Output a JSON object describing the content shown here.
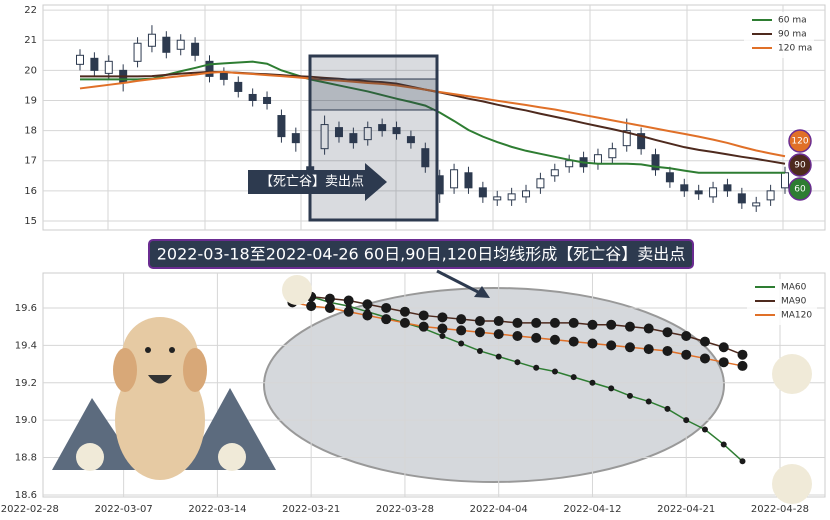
{
  "chart_data": [
    {
      "type": "candlestick",
      "open": [
        20.2,
        20.4,
        19.9,
        20.0,
        20.3,
        20.8,
        21.1,
        20.7,
        20.9,
        20.3,
        19.9,
        19.6,
        19.2,
        19.1,
        18.5,
        17.9,
        16.8,
        17.4,
        18.1,
        17.9,
        17.7,
        18.2,
        18.1,
        17.8,
        17.4,
        16.5,
        16.1,
        16.6,
        16.1,
        15.7,
        15.7,
        15.8,
        16.1,
        16.5,
        16.8,
        17.1,
        16.9,
        17.1,
        17.5,
        17.9,
        17.2,
        16.6,
        16.2,
        16.0,
        15.8,
        16.2,
        15.9,
        15.5,
        15.7,
        16.1
      ],
      "high": [
        20.7,
        20.6,
        20.5,
        20.2,
        21.1,
        21.5,
        21.3,
        21.2,
        21.1,
        20.5,
        20.1,
        19.8,
        19.4,
        19.3,
        18.7,
        18.1,
        17.0,
        18.5,
        18.3,
        18.1,
        18.3,
        18.4,
        18.3,
        18.0,
        17.6,
        16.7,
        16.9,
        16.8,
        16.3,
        16.0,
        16.1,
        16.2,
        16.6,
        16.9,
        17.2,
        17.3,
        17.4,
        17.6,
        18.4,
        18.1,
        17.4,
        16.8,
        16.4,
        16.2,
        16.3,
        16.4,
        16.1,
        15.8,
        16.2,
        16.8
      ],
      "low": [
        20.0,
        19.8,
        19.7,
        19.3,
        20.1,
        20.6,
        20.4,
        20.5,
        20.3,
        19.6,
        19.5,
        19.1,
        18.8,
        18.7,
        17.6,
        17.3,
        15.9,
        17.2,
        17.6,
        17.4,
        17.5,
        17.8,
        17.7,
        17.4,
        16.6,
        15.6,
        15.9,
        15.9,
        15.6,
        15.5,
        15.5,
        15.6,
        15.9,
        16.3,
        16.6,
        16.6,
        16.7,
        16.9,
        17.3,
        17.2,
        16.5,
        16.1,
        15.8,
        15.7,
        15.6,
        15.8,
        15.4,
        15.3,
        15.5,
        15.9
      ],
      "close": [
        20.5,
        20.0,
        20.3,
        19.6,
        20.9,
        21.2,
        20.6,
        21.0,
        20.5,
        19.8,
        19.7,
        19.3,
        19.0,
        18.9,
        17.8,
        17.6,
        16.2,
        18.2,
        17.8,
        17.6,
        18.1,
        18.0,
        17.9,
        17.6,
        16.8,
        15.9,
        16.7,
        16.1,
        15.8,
        15.8,
        15.9,
        16.0,
        16.4,
        16.7,
        17.0,
        16.8,
        17.2,
        17.4,
        18.0,
        17.4,
        16.7,
        16.3,
        16.0,
        15.9,
        16.1,
        16.0,
        15.6,
        15.6,
        16.0,
        16.6
      ],
      "series": [
        {
          "name": "60 ma",
          "color": "#2e7d32",
          "values": [
            19.7,
            19.7,
            19.7,
            19.7,
            19.7,
            19.72,
            19.85,
            19.97,
            20.08,
            20.2,
            20.23,
            20.26,
            20.29,
            20.22,
            20.0,
            19.85,
            19.7,
            19.6,
            19.5,
            19.4,
            19.3,
            19.18,
            19.06,
            18.95,
            18.83,
            18.6,
            18.32,
            18.02,
            17.8,
            17.62,
            17.46,
            17.33,
            17.23,
            17.13,
            17.03,
            16.94,
            16.9,
            16.9,
            16.9,
            16.88,
            16.8,
            16.75,
            16.67,
            16.6,
            16.6,
            16.6,
            16.6,
            16.6,
            16.6,
            16.6
          ]
        },
        {
          "name": "90 ma",
          "color": "#4e2a1e",
          "values": [
            19.8,
            19.8,
            19.8,
            19.8,
            19.8,
            19.81,
            19.85,
            19.89,
            19.92,
            19.95,
            19.94,
            19.92,
            19.89,
            19.87,
            19.84,
            19.81,
            19.79,
            19.75,
            19.72,
            19.68,
            19.64,
            19.61,
            19.56,
            19.46,
            19.36,
            19.27,
            19.17,
            19.06,
            18.97,
            18.86,
            18.76,
            18.67,
            18.56,
            18.46,
            18.36,
            18.25,
            18.15,
            18.05,
            17.94,
            17.82,
            17.69,
            17.57,
            17.45,
            17.36,
            17.29,
            17.21,
            17.13,
            17.06,
            16.98,
            16.9
          ]
        },
        {
          "name": "120 ma",
          "color": "#e07028",
          "values": [
            19.4,
            19.46,
            19.52,
            19.58,
            19.65,
            19.71,
            19.76,
            19.81,
            19.86,
            19.92,
            19.95,
            19.91,
            19.88,
            19.84,
            19.81,
            19.77,
            19.73,
            19.69,
            19.66,
            19.62,
            19.58,
            19.55,
            19.5,
            19.43,
            19.36,
            19.28,
            19.21,
            19.14,
            19.07,
            18.99,
            18.92,
            18.85,
            18.77,
            18.7,
            18.61,
            18.52,
            18.43,
            18.34,
            18.25,
            18.16,
            18.07,
            17.98,
            17.89,
            17.8,
            17.7,
            17.59,
            17.46,
            17.34,
            17.24,
            17.15
          ]
        }
      ],
      "end_badges": [
        120,
        90,
        60
      ],
      "annotation": "【死亡谷】卖出点",
      "ylim": [
        14.7,
        22.17
      ],
      "yticks": [
        15,
        16,
        17,
        18,
        19,
        20,
        21,
        22
      ],
      "grid": true,
      "legend": "upper right"
    },
    {
      "type": "line",
      "title": "2022-03-18至2022-04-26 60日,90日,120日均线形成【死亡谷】卖出点",
      "x": [
        0,
        1,
        2,
        3,
        4,
        5,
        6,
        7,
        8,
        9,
        10,
        11,
        12,
        13,
        14,
        15,
        16,
        17,
        18,
        19,
        20,
        21,
        22,
        23,
        24
      ],
      "series": [
        {
          "name": "MA60",
          "color": "#2e7d32",
          "values": [
            19.68,
            19.66,
            19.63,
            19.61,
            19.58,
            19.55,
            19.52,
            19.49,
            19.45,
            19.41,
            19.37,
            19.34,
            19.31,
            19.28,
            19.26,
            19.23,
            19.2,
            19.17,
            19.13,
            19.1,
            19.06,
            19.0,
            18.95,
            18.87,
            18.78
          ]
        },
        {
          "name": "MA90",
          "color": "#4e2a1e",
          "values": [
            19.67,
            19.66,
            19.65,
            19.64,
            19.62,
            19.6,
            19.58,
            19.56,
            19.55,
            19.54,
            19.53,
            19.53,
            19.52,
            19.52,
            19.52,
            19.52,
            19.51,
            19.51,
            19.5,
            19.49,
            19.47,
            19.45,
            19.42,
            19.39,
            19.35
          ]
        },
        {
          "name": "MA120",
          "color": "#e07028",
          "values": [
            19.63,
            19.61,
            19.6,
            19.58,
            19.56,
            19.54,
            19.52,
            19.5,
            19.49,
            19.48,
            19.47,
            19.46,
            19.45,
            19.44,
            19.43,
            19.42,
            19.41,
            19.4,
            19.39,
            19.38,
            19.37,
            19.35,
            19.33,
            19.31,
            19.29
          ]
        }
      ],
      "xlim": [
        -13.3,
        28.4
      ],
      "xticks": [
        {
          "value": -14,
          "label": "2022-02-28"
        },
        {
          "value": -9,
          "label": "2022-03-07"
        },
        {
          "value": -4,
          "label": "2022-03-14"
        },
        {
          "value": 1,
          "label": "2022-03-21"
        },
        {
          "value": 6,
          "label": "2022-03-28"
        },
        {
          "value": 11,
          "label": "2022-04-04"
        },
        {
          "value": 16,
          "label": "2022-04-12"
        },
        {
          "value": 21,
          "label": "2022-04-21"
        },
        {
          "value": 26,
          "label": "2022-04-28"
        }
      ],
      "ylim": [
        18.589,
        19.787
      ],
      "yticks": [
        18.6,
        18.8,
        {
          "value": 19,
          "label": "19.0"
        },
        19.2,
        19.4,
        19.6
      ],
      "grid": true,
      "legend": "upper right"
    }
  ]
}
